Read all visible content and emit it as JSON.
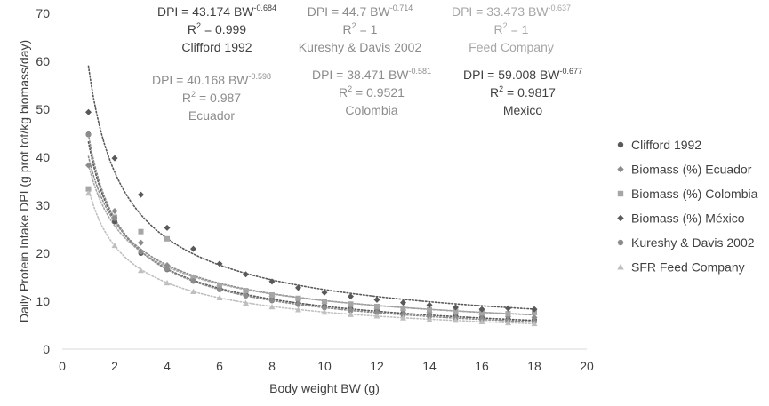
{
  "chart_data": {
    "type": "scatter",
    "title": "",
    "xlabel": "Body weight BW (g)",
    "ylabel": "Daily Protein Intake DPI (g prot tot/kg biomass/day)",
    "xlim": [
      0,
      20
    ],
    "ylim": [
      0,
      70
    ],
    "xticks": [
      "0",
      "2",
      "4",
      "6",
      "8",
      "10",
      "12",
      "14",
      "16",
      "18",
      "20"
    ],
    "yticks": [
      "0",
      "10",
      "20",
      "30",
      "40",
      "50",
      "60",
      "70"
    ],
    "legend_position": "right",
    "series": [
      {
        "name": "Clifford 1992",
        "marker": "circle",
        "color": "#595959",
        "x": [
          1,
          2,
          3,
          4,
          5,
          6,
          7,
          8,
          9,
          10,
          11,
          12,
          13,
          14,
          15,
          16,
          17,
          18
        ],
        "y": [
          44.8,
          26.6,
          20.0,
          16.6,
          14.2,
          12.6,
          11.4,
          10.4,
          9.6,
          9.0,
          8.4,
          8.0,
          7.5,
          7.2,
          6.9,
          6.6,
          6.3,
          6.1
        ],
        "trend": {
          "a": 43.174,
          "b": -0.684,
          "style": "dotted"
        }
      },
      {
        "name": "Biomass (%) Ecuador",
        "marker": "diamond",
        "color": "#8c8c8c",
        "x": [
          1,
          2,
          3,
          4,
          5,
          6,
          7,
          8,
          9,
          10,
          11,
          12,
          13,
          14,
          15,
          16,
          17,
          18
        ],
        "y": [
          38.3,
          28.8,
          22.2,
          17.5,
          15.0,
          13.2,
          12.0,
          11.0,
          10.2,
          9.6,
          9.0,
          8.5,
          8.1,
          7.7,
          7.4,
          7.1,
          6.8,
          6.6
        ],
        "trend": {
          "a": 40.168,
          "b": -0.598,
          "style": "dotted"
        }
      },
      {
        "name": "Biomass (%) Colombia",
        "marker": "square",
        "color": "#a6a6a6",
        "x": [
          1,
          2,
          3,
          4,
          5,
          6,
          7,
          8,
          9,
          10,
          11,
          12,
          13,
          14,
          15,
          16,
          17,
          18
        ],
        "y": [
          33.4,
          27.5,
          24.5,
          23.0,
          15.0,
          13.3,
          12.2,
          11.3,
          10.6,
          10.0,
          9.4,
          8.9,
          8.5,
          8.2,
          7.9,
          7.6,
          7.4,
          7.6
        ],
        "trend": {
          "a": 38.471,
          "b": -0.581,
          "style": "dotted"
        }
      },
      {
        "name": "Biomass (%) México",
        "marker": "diamond",
        "color": "#595959",
        "x": [
          1,
          2,
          3,
          4,
          5,
          6,
          7,
          8,
          9,
          10,
          11,
          12,
          13,
          14,
          15,
          16,
          17,
          18
        ],
        "y": [
          49.4,
          39.8,
          32.2,
          25.3,
          20.9,
          17.8,
          15.6,
          14.1,
          12.8,
          11.8,
          11.0,
          10.3,
          9.7,
          9.2,
          8.7,
          8.3,
          8.5,
          8.3
        ],
        "trend": {
          "a": 59.008,
          "b": -0.677,
          "style": "dotted"
        }
      },
      {
        "name": "Kureshy & Davis 2002",
        "marker": "circle",
        "color": "#8c8c8c",
        "x": [
          1,
          2,
          3,
          4,
          5,
          6,
          7,
          8,
          9,
          10,
          11,
          12,
          13,
          14,
          15,
          16,
          17,
          18
        ],
        "y": [
          44.7,
          27.3,
          20.3,
          16.7,
          14.2,
          12.4,
          11.1,
          10.1,
          9.3,
          8.6,
          8.0,
          7.6,
          7.1,
          6.8,
          6.4,
          6.2,
          5.9,
          5.7
        ],
        "trend": {
          "a": 44.7,
          "b": -0.714,
          "style": "dotted"
        }
      },
      {
        "name": "SFR Feed Company",
        "marker": "triangle",
        "color": "#bfbfbf",
        "x": [
          1,
          2,
          3,
          4,
          5,
          6,
          7,
          8,
          9,
          10,
          11,
          12,
          13,
          14,
          15,
          16,
          17,
          18
        ],
        "y": [
          32.5,
          21.6,
          16.4,
          13.8,
          12.0,
          10.7,
          9.6,
          8.8,
          8.2,
          7.7,
          7.2,
          6.9,
          6.5,
          6.2,
          6.0,
          5.7,
          5.5,
          5.3
        ],
        "trend": {
          "a": 33.473,
          "b": -0.637,
          "style": "dotted"
        }
      }
    ],
    "annotations": [
      {
        "id": "eq-clifford",
        "line1": "DPI = 43.174 BW",
        "exp": "-0.684",
        "r2_text": "R",
        "r2_sup": "2",
        "r2_value": " = 0.999",
        "source": "Clifford 1992",
        "color": "#404040"
      },
      {
        "id": "eq-kureshy",
        "line1": "DPI = 44.7 BW",
        "exp": "-0.714",
        "r2_text": "R",
        "r2_sup": "2",
        "r2_value": " = 1",
        "source": "Kureshy & Davis 2002",
        "color": "#8c8c8c"
      },
      {
        "id": "eq-feed",
        "line1": "DPI = 33.473 BW",
        "exp": "-0.637",
        "r2_text": "R",
        "r2_sup": "2",
        "r2_value": " = 1",
        "source": "Feed Company",
        "color": "#a6a6a6"
      },
      {
        "id": "eq-ecuador",
        "line1": "DPI = 40.168 BW",
        "exp": "-0.598",
        "r2_text": "R",
        "r2_sup": "2",
        "r2_value": " = 0.987",
        "source": "Ecuador",
        "color": "#8c8c8c"
      },
      {
        "id": "eq-colombia",
        "line1": "DPI = 38.471 BW",
        "exp": "-0.581",
        "r2_text": "R",
        "r2_sup": "2",
        "r2_value": " = 0.9521",
        "source": "Colombia",
        "color": "#8c8c8c"
      },
      {
        "id": "eq-mexico",
        "line1": "DPI = 59.008 BW",
        "exp": "-0.677",
        "r2_text": "R",
        "r2_sup": "2",
        "r2_value": " = 0.9817",
        "source": "Mexico",
        "color": "#404040"
      }
    ]
  }
}
